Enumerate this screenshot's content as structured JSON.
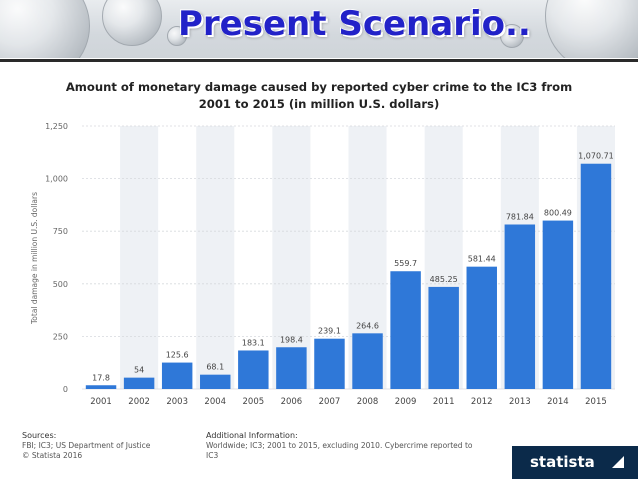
{
  "slide": {
    "title": "Present Scenario.."
  },
  "chart_header": {
    "line1": "Amount of monetary damage caused by reported cyber crime to the IC3 from",
    "line2": "2001 to 2015 (in million U.S. dollars)"
  },
  "chart_data": {
    "type": "bar",
    "title": "Amount of monetary damage caused by reported cyber crime to the IC3 from 2001 to 2015 (in million U.S. dollars)",
    "xlabel": "",
    "ylabel": "Total damage in million U.S. dollars",
    "categories": [
      "2001",
      "2002",
      "2003",
      "2004",
      "2005",
      "2006",
      "2007",
      "2008",
      "2009",
      "2011",
      "2012",
      "2013",
      "2014",
      "2015"
    ],
    "values": [
      17.8,
      54,
      125.6,
      68.1,
      183.1,
      198.4,
      239.1,
      264.6,
      559.7,
      485.25,
      581.44,
      781.84,
      800.49,
      1070.71
    ],
    "value_labels": [
      "17.8",
      "54",
      "125.6",
      "68.1",
      "183.1",
      "198.4",
      "239.1",
      "264.6",
      "559.7",
      "485.25",
      "581.44",
      "781.84",
      "800.49",
      "1,070.71"
    ],
    "ylim": [
      0,
      1250
    ],
    "yticks": [
      0,
      250,
      500,
      750,
      1000,
      1250
    ],
    "ytick_labels": [
      "0",
      "250",
      "500",
      "750",
      "1,000",
      "1,250"
    ],
    "grid": true,
    "bar_color": "#2f78d8",
    "stripe_color": "#eef1f5"
  },
  "footer": {
    "sources_title": "Sources:",
    "sources_line1": "FBI; IC3; US Department of Justice",
    "sources_line2": "© Statista 2016",
    "info_title": "Additional Information:",
    "info_line1": "Worldwide; IC3; 2001 to 2015, excluding 2010. Cybercrime reported to",
    "info_line2": "IC3",
    "brand": "statista"
  }
}
